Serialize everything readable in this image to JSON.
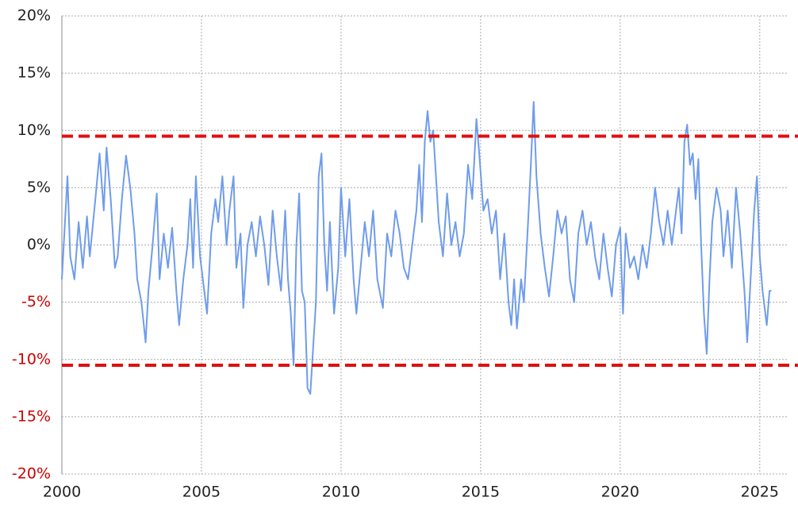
{
  "chart_data": {
    "type": "line",
    "color": "#6f9ceb",
    "negative_tick_color": "#cc0000",
    "grid": true,
    "xlim": [
      2000,
      2026
    ],
    "xticks": [
      2000,
      2005,
      2010,
      2015,
      2020,
      2025
    ],
    "ylim": [
      -20,
      20
    ],
    "yticks": [
      {
        "value": -20,
        "label": "-20%"
      },
      {
        "value": -15,
        "label": "-15%"
      },
      {
        "value": -10,
        "label": "-10%"
      },
      {
        "value": -5,
        "label": "-5%"
      },
      {
        "value": 0,
        "label": "0%"
      },
      {
        "value": 5,
        "label": "5%"
      },
      {
        "value": 10,
        "label": "10%"
      },
      {
        "value": 15,
        "label": "15%"
      },
      {
        "value": 20,
        "label": "20%"
      }
    ],
    "reference_lines": [
      {
        "value": 9.5,
        "color": "#e01010"
      },
      {
        "value": -10.5,
        "color": "#e01010"
      }
    ],
    "x": [
      2000.0,
      2000.1,
      2000.2,
      2000.3,
      2000.45,
      2000.6,
      2000.75,
      2000.9,
      2001.0,
      2001.2,
      2001.35,
      2001.5,
      2001.6,
      2001.75,
      2001.9,
      2002.0,
      2002.15,
      2002.3,
      2002.45,
      2002.6,
      2002.7,
      2002.85,
      2003.0,
      2003.1,
      2003.25,
      2003.4,
      2003.5,
      2003.65,
      2003.8,
      2003.95,
      2004.1,
      2004.2,
      2004.35,
      2004.5,
      2004.6,
      2004.7,
      2004.8,
      2004.95,
      2005.1,
      2005.2,
      2005.35,
      2005.5,
      2005.6,
      2005.75,
      2005.9,
      2006.0,
      2006.15,
      2006.25,
      2006.4,
      2006.5,
      2006.65,
      2006.8,
      2006.95,
      2007.1,
      2007.25,
      2007.4,
      2007.55,
      2007.7,
      2007.85,
      2008.0,
      2008.1,
      2008.2,
      2008.3,
      2008.4,
      2008.5,
      2008.6,
      2008.7,
      2008.8,
      2008.9,
      2009.0,
      2009.1,
      2009.2,
      2009.3,
      2009.4,
      2009.5,
      2009.6,
      2009.75,
      2009.9,
      2010.0,
      2010.15,
      2010.3,
      2010.45,
      2010.55,
      2010.7,
      2010.85,
      2011.0,
      2011.15,
      2011.3,
      2011.5,
      2011.65,
      2011.8,
      2011.95,
      2012.1,
      2012.25,
      2012.4,
      2012.55,
      2012.7,
      2012.8,
      2012.9,
      2013.0,
      2013.1,
      2013.2,
      2013.3,
      2013.4,
      2013.5,
      2013.65,
      2013.8,
      2013.95,
      2014.1,
      2014.25,
      2014.4,
      2014.55,
      2014.7,
      2014.85,
      2014.95,
      2015.1,
      2015.25,
      2015.4,
      2015.55,
      2015.7,
      2015.85,
      2016.0,
      2016.1,
      2016.2,
      2016.3,
      2016.45,
      2016.55,
      2016.7,
      2016.8,
      2016.9,
      2017.0,
      2017.15,
      2017.3,
      2017.45,
      2017.6,
      2017.75,
      2017.9,
      2018.05,
      2018.2,
      2018.35,
      2018.5,
      2018.65,
      2018.8,
      2018.95,
      2019.1,
      2019.25,
      2019.4,
      2019.55,
      2019.7,
      2019.85,
      2020.0,
      2020.1,
      2020.2,
      2020.35,
      2020.5,
      2020.65,
      2020.8,
      2020.95,
      2021.1,
      2021.25,
      2021.4,
      2021.55,
      2021.7,
      2021.85,
      2022.0,
      2022.1,
      2022.2,
      2022.3,
      2022.4,
      2022.5,
      2022.6,
      2022.7,
      2022.8,
      2022.9,
      2023.0,
      2023.1,
      2023.2,
      2023.3,
      2023.45,
      2023.6,
      2023.7,
      2023.85,
      2024.0,
      2024.15,
      2024.3,
      2024.45,
      2024.55,
      2024.65,
      2024.8,
      2024.9,
      2025.0,
      2025.1,
      2025.25,
      2025.35,
      2025.42
    ],
    "values": [
      -3,
      1.5,
      6,
      -1,
      -3,
      2,
      -2,
      2.5,
      -1,
      4,
      8,
      3,
      8.5,
      4,
      -2,
      -1,
      4,
      7.8,
      5,
      1,
      -3,
      -5,
      -8.5,
      -4,
      0,
      4.5,
      -3,
      1,
      -2,
      1.5,
      -4,
      -7,
      -3,
      0,
      4,
      -2,
      6,
      -1,
      -4,
      -6,
      1,
      4,
      2,
      6,
      0,
      3,
      6,
      -2,
      1,
      -5.5,
      0,
      2,
      -1,
      2.5,
      0,
      -3.5,
      3,
      -1,
      -4,
      3,
      -3,
      -6,
      -10.5,
      0,
      4.5,
      -4,
      -5,
      -12.5,
      -13,
      -9,
      -5,
      6,
      8,
      0,
      -4,
      2,
      -6,
      -2,
      5,
      -1,
      4,
      -3,
      -6,
      -2,
      2,
      -1,
      3,
      -3,
      -5.5,
      1,
      -1,
      3,
      1,
      -2,
      -3,
      0,
      3,
      7,
      2,
      9,
      11.7,
      9,
      10,
      6,
      2,
      -1,
      4.5,
      0,
      2,
      -1,
      1,
      7,
      4,
      11,
      8,
      3,
      4,
      1,
      3,
      -3,
      1,
      -5,
      -7,
      -3,
      -7.3,
      -3,
      -5,
      2,
      7,
      12.5,
      6,
      1,
      -2,
      -4.5,
      -1,
      3,
      1,
      2.5,
      -3,
      -5,
      1,
      3,
      0,
      2,
      -1,
      -3,
      1,
      -2,
      -4.5,
      0,
      1.5,
      -6,
      1,
      -2,
      -1,
      -3,
      0,
      -2,
      1,
      5,
      2,
      0,
      3,
      0,
      3,
      5,
      1,
      9,
      10.5,
      7,
      8,
      4,
      7.5,
      0,
      -6,
      -9.5,
      -3,
      2,
      5,
      3,
      -1,
      3,
      -2,
      5,
      1,
      -4,
      -8.5,
      -4,
      3,
      6,
      -1,
      -4,
      -7,
      -4,
      -4
    ]
  }
}
